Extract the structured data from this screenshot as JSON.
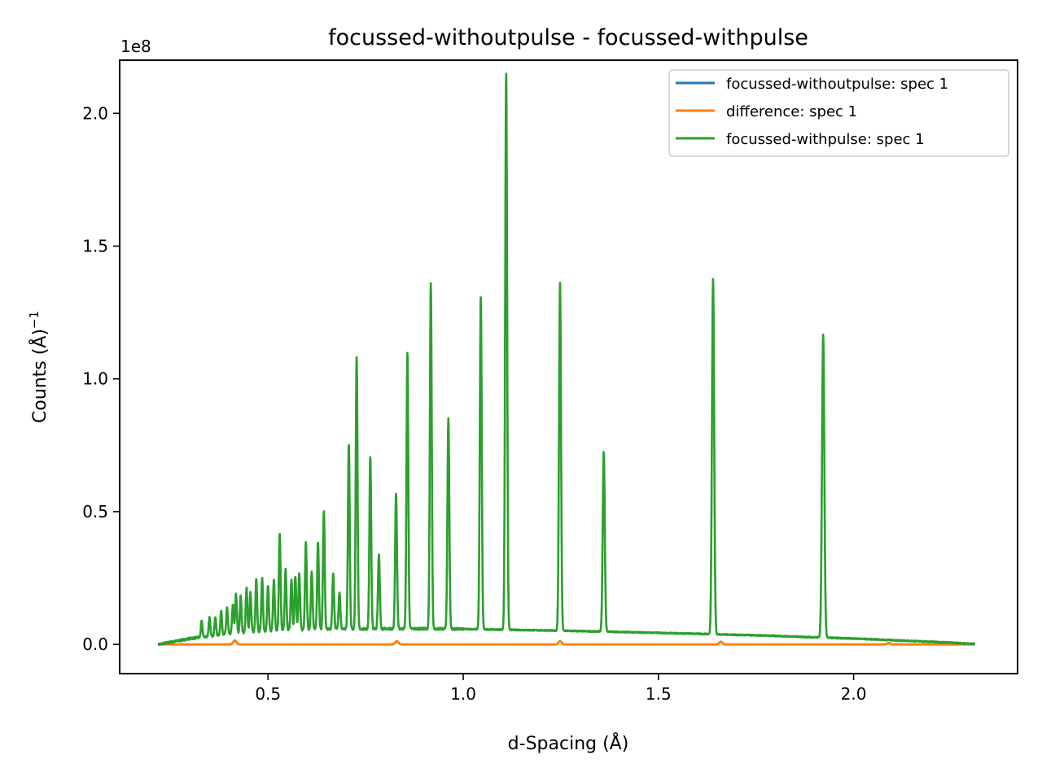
{
  "chart_data": {
    "type": "line",
    "title": "focussed-withoutpulse - focussed-withpulse",
    "xlabel": "d-Spacing (Å)",
    "ylabel": "Counts (Å)",
    "ylabel_exponent": "−1",
    "y_offset_text": "1e8",
    "xlim": [
      0.12,
      2.42
    ],
    "ylim": [
      -0.11,
      2.2
    ],
    "y_scale_note": "values in units of 1e8",
    "x_ticks": [
      0.5,
      1.0,
      1.5,
      2.0
    ],
    "x_tick_labels": [
      "0.5",
      "1.0",
      "1.5",
      "2.0"
    ],
    "y_ticks": [
      0.0,
      0.5,
      1.0,
      1.5,
      2.0
    ],
    "y_tick_labels": [
      "0.0",
      "0.5",
      "1.0",
      "1.5",
      "2.0"
    ],
    "grid": false,
    "legend_position": "top-right",
    "x_range": [
      0.22,
      2.31
    ],
    "background_curve": {
      "x": [
        0.22,
        0.3,
        0.4,
        0.5,
        0.6,
        0.7,
        0.8,
        0.9,
        1.0,
        1.2,
        1.4,
        1.6,
        1.8,
        2.0,
        2.2,
        2.31
      ],
      "y": [
        0.0,
        0.022,
        0.04,
        0.051,
        0.056,
        0.058,
        0.059,
        0.059,
        0.058,
        0.053,
        0.047,
        0.04,
        0.032,
        0.022,
        0.01,
        0.002
      ]
    },
    "peaks": {
      "x": [
        0.33,
        0.35,
        0.365,
        0.38,
        0.395,
        0.41,
        0.418,
        0.43,
        0.445,
        0.455,
        0.47,
        0.485,
        0.5,
        0.515,
        0.53,
        0.545,
        0.56,
        0.57,
        0.58,
        0.597,
        0.612,
        0.628,
        0.643,
        0.667,
        0.683,
        0.707,
        0.727,
        0.762,
        0.784,
        0.828,
        0.857,
        0.917,
        0.962,
        1.045,
        1.11,
        1.248,
        1.36,
        1.64,
        1.922
      ],
      "y": [
        0.06,
        0.07,
        0.07,
        0.09,
        0.1,
        0.11,
        0.15,
        0.14,
        0.17,
        0.15,
        0.2,
        0.2,
        0.17,
        0.19,
        0.37,
        0.23,
        0.19,
        0.2,
        0.21,
        0.33,
        0.22,
        0.33,
        0.45,
        0.21,
        0.14,
        0.7,
        1.03,
        0.65,
        0.28,
        0.51,
        1.04,
        1.3,
        0.79,
        1.25,
        2.1,
        1.31,
        0.68,
        1.34,
        1.14
      ]
    },
    "difference_bumps": {
      "x": [
        0.415,
        0.83,
        1.248,
        1.66,
        2.09
      ],
      "y": [
        0.015,
        0.012,
        0.012,
        0.01,
        0.005
      ]
    },
    "series": [
      {
        "name": "focussed-withoutpulse: spec 1",
        "color": "#1f77b4"
      },
      {
        "name": "difference: spec 1",
        "color": "#ff7f0e"
      },
      {
        "name": "focussed-withpulse: spec 1",
        "color": "#2ca02c"
      }
    ]
  }
}
